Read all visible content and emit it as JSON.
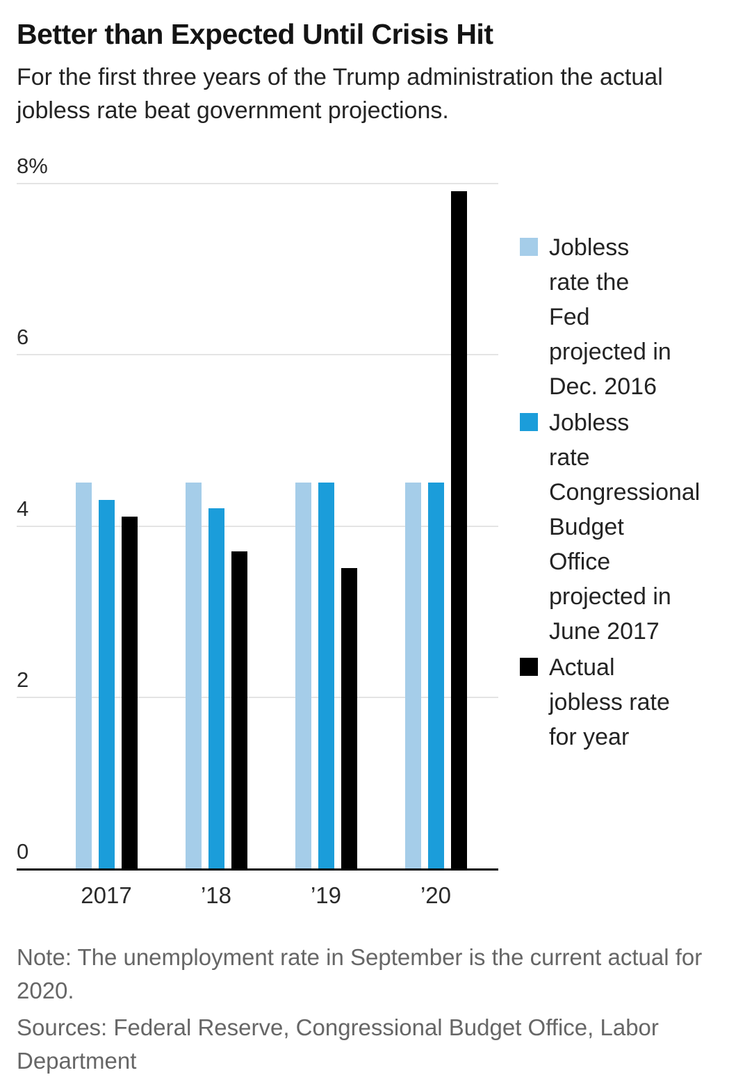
{
  "header": {
    "title": "Better than Expected Until Crisis Hit",
    "subtitle": "For the first three years of the Trump administration the actual jobless rate beat government projections."
  },
  "chart_data": {
    "type": "bar",
    "title": "Better than Expected Until Crisis Hit",
    "categories": [
      "2017",
      "’18",
      "’19",
      "’20"
    ],
    "series": [
      {
        "name": "Jobless rate the Fed projected in Dec. 2016",
        "color": "#a5cde9",
        "values": [
          4.5,
          4.5,
          4.5,
          4.5
        ]
      },
      {
        "name": "Jobless rate Congressional Budget Office projected in June 2017",
        "color": "#1b9dda",
        "values": [
          4.3,
          4.2,
          4.5,
          4.5
        ]
      },
      {
        "name": "Actual jobless rate for year",
        "color": "#000000",
        "values": [
          4.1,
          3.7,
          3.5,
          7.9
        ]
      }
    ],
    "xlabel": "",
    "ylabel": "",
    "ylim": [
      0,
      8
    ],
    "yticks": [
      0,
      2,
      4,
      6,
      8
    ],
    "ytick_labels": [
      "0",
      "2",
      "4",
      "6",
      "8%"
    ],
    "grid": true,
    "legend_position": "right",
    "colors": {
      "gridline": "#e4e4e4",
      "axis": "#000000",
      "fed_light_blue": "#a5cde9",
      "cbo_blue": "#1b9dda",
      "actual_black": "#000000"
    }
  },
  "footer": {
    "note": "Note: The unemployment rate in September is the current actual for 2020.",
    "sources": "Sources: Federal Reserve, Congressional Budget Office, Labor Department"
  }
}
